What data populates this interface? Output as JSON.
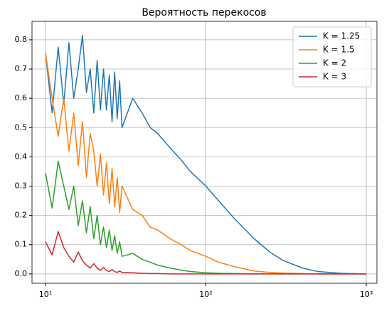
{
  "chart_data": {
    "type": "line",
    "title": "Вероятность перекосов",
    "x": [
      10,
      11,
      12,
      13,
      14,
      15,
      16,
      17,
      18,
      19,
      20,
      21,
      22,
      23,
      24,
      25,
      26,
      27,
      28,
      29,
      30,
      35,
      40,
      45,
      50,
      60,
      70,
      80,
      100,
      120,
      150,
      200,
      250,
      300,
      400,
      500,
      700,
      1000
    ],
    "series": [
      {
        "name": "K = 1.25",
        "color": "#1f77b4",
        "values": [
          0.755,
          0.55,
          0.775,
          0.58,
          0.79,
          0.6,
          0.7,
          0.815,
          0.62,
          0.7,
          0.55,
          0.73,
          0.56,
          0.7,
          0.56,
          0.68,
          0.52,
          0.69,
          0.53,
          0.66,
          0.5,
          0.6,
          0.55,
          0.5,
          0.48,
          0.43,
          0.39,
          0.35,
          0.3,
          0.25,
          0.19,
          0.12,
          0.075,
          0.047,
          0.02,
          0.008,
          0.002,
          0
        ]
      },
      {
        "name": "K = 1.5",
        "color": "#ff7f0e",
        "values": [
          0.755,
          0.6,
          0.47,
          0.6,
          0.42,
          0.55,
          0.37,
          0.52,
          0.33,
          0.48,
          0.42,
          0.3,
          0.41,
          0.27,
          0.38,
          0.24,
          0.36,
          0.23,
          0.33,
          0.21,
          0.3,
          0.22,
          0.2,
          0.16,
          0.15,
          0.12,
          0.1,
          0.08,
          0.06,
          0.04,
          0.025,
          0.01,
          0.005,
          0.003,
          0.001,
          0,
          0,
          0
        ]
      },
      {
        "name": "K = 2",
        "color": "#2ca02c",
        "values": [
          0.345,
          0.225,
          0.385,
          0.3,
          0.22,
          0.3,
          0.165,
          0.25,
          0.14,
          0.23,
          0.12,
          0.2,
          0.1,
          0.16,
          0.09,
          0.15,
          0.08,
          0.13,
          0.07,
          0.11,
          0.06,
          0.07,
          0.05,
          0.04,
          0.03,
          0.02,
          0.013,
          0.008,
          0.004,
          0.002,
          0.001,
          0,
          0,
          0,
          0,
          0,
          0,
          0
        ]
      },
      {
        "name": "K = 3",
        "color": "#d62728",
        "values": [
          0.11,
          0.065,
          0.145,
          0.09,
          0.06,
          0.04,
          0.075,
          0.045,
          0.03,
          0.02,
          0.035,
          0.02,
          0.012,
          0.022,
          0.012,
          0.008,
          0.015,
          0.008,
          0.005,
          0.01,
          0.005,
          0.004,
          0.002,
          0.001,
          0.001,
          0,
          0,
          0,
          0,
          0,
          0,
          0,
          0,
          0,
          0,
          0,
          0,
          0
        ]
      }
    ],
    "xscale": "log",
    "xlim": [
      8.24,
      1165
    ],
    "xticks": [
      {
        "value": 10,
        "label": "10¹"
      },
      {
        "value": 100,
        "label": "10²"
      },
      {
        "value": 1000,
        "label": "10³"
      }
    ],
    "ylim": [
      -0.032,
      0.863
    ],
    "yticks": [
      {
        "value": 0,
        "label": "0.0"
      },
      0.1,
      0.2,
      0.3,
      0.4,
      0.5,
      0.6,
      0.7,
      0.8
    ],
    "grid": true,
    "legend": "upper right"
  }
}
